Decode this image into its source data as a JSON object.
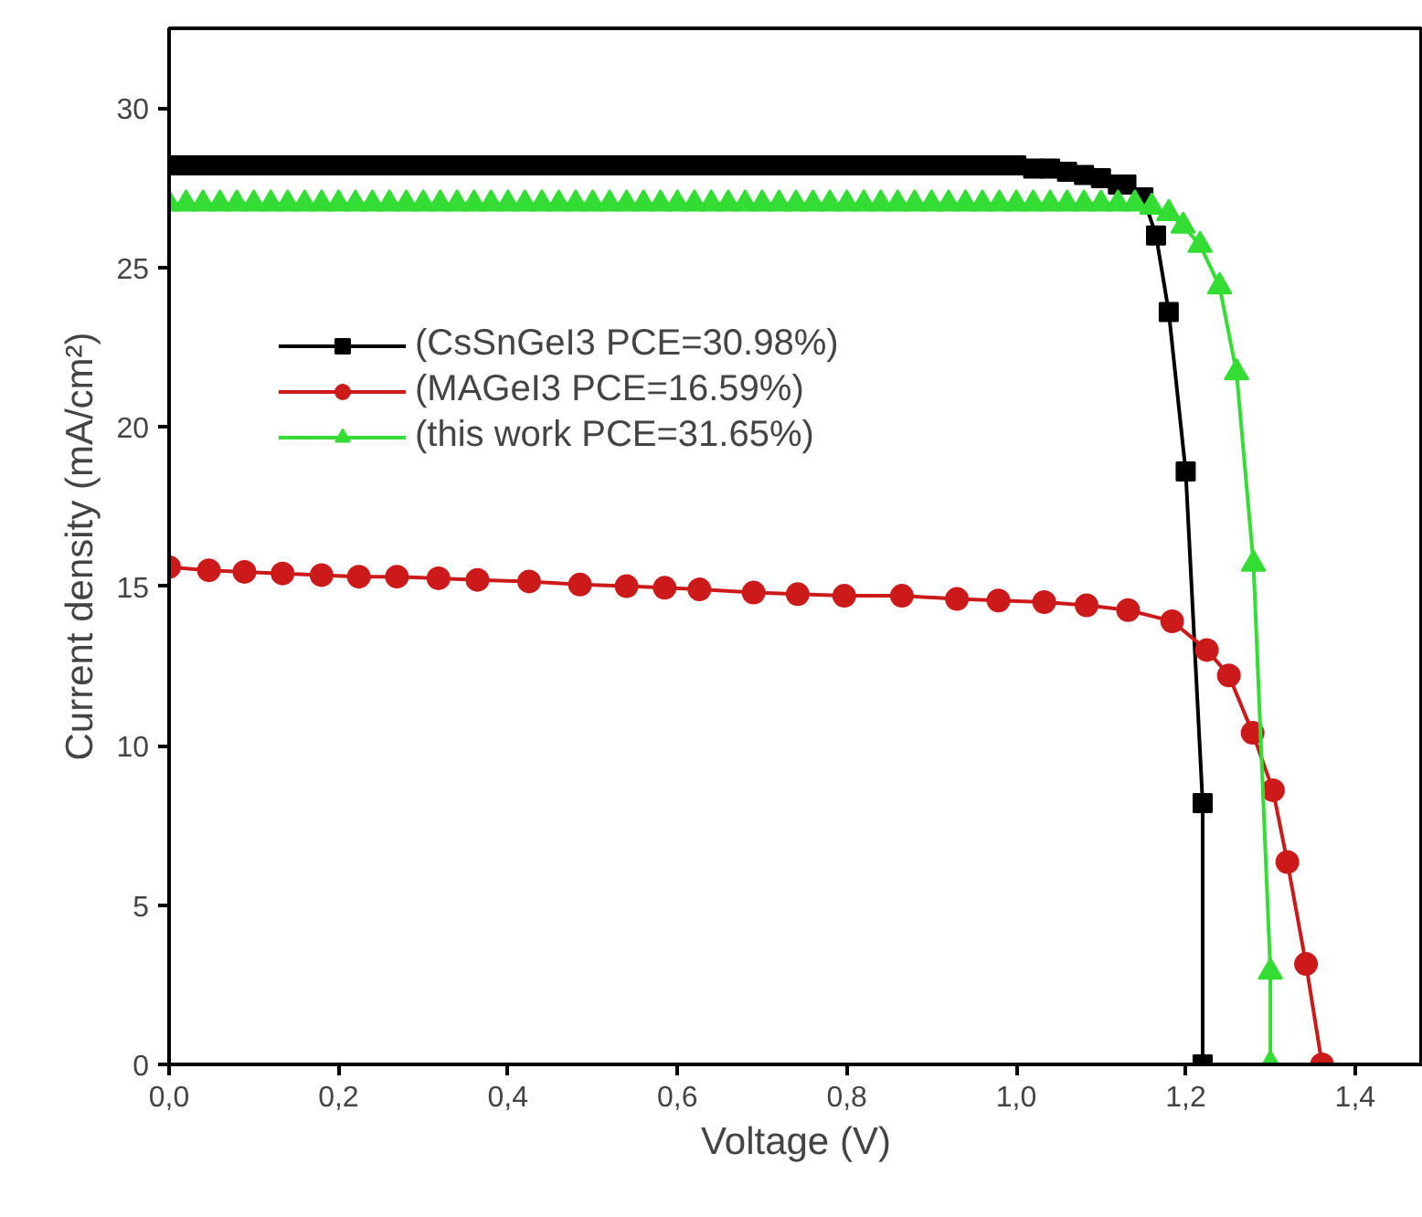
{
  "chart_data": {
    "type": "line",
    "xlabel": "Voltage (V)",
    "ylabel": "Current density (mA/cm²)",
    "xlim": [
      0,
      1.48
    ],
    "ylim": [
      0,
      32.5
    ],
    "xticks": [
      {
        "value": 0,
        "label": "0,0"
      },
      {
        "value": 0.2,
        "label": "0,2"
      },
      {
        "value": 0.4,
        "label": "0,4"
      },
      {
        "value": 0.6,
        "label": "0,6"
      },
      {
        "value": 0.8,
        "label": "0,8"
      },
      {
        "value": 1.0,
        "label": "1,0"
      },
      {
        "value": 1.2,
        "label": "1,2"
      },
      {
        "value": 1.4,
        "label": "1,4"
      }
    ],
    "yticks": [
      0,
      5,
      10,
      15,
      20,
      25,
      30
    ],
    "grid": false,
    "legend": "top left",
    "series": [
      {
        "name": "(CsSnGeI3 PCE=30.98%)",
        "color": "#000000",
        "marker": "square",
        "x": [
          0,
          0.02,
          0.04,
          0.06,
          0.08,
          0.1,
          0.12,
          0.14,
          0.16,
          0.18,
          0.2,
          0.22,
          0.24,
          0.26,
          0.28,
          0.3,
          0.32,
          0.34,
          0.36,
          0.38,
          0.4,
          0.42,
          0.44,
          0.46,
          0.48,
          0.5,
          0.52,
          0.54,
          0.56,
          0.58,
          0.6,
          0.62,
          0.64,
          0.66,
          0.68,
          0.7,
          0.72,
          0.74,
          0.76,
          0.78,
          0.8,
          0.82,
          0.84,
          0.86,
          0.88,
          0.9,
          0.92,
          0.94,
          0.96,
          0.98,
          1.0,
          1.02,
          1.04,
          1.06,
          1.08,
          1.1,
          1.12,
          1.13,
          1.15,
          1.165,
          1.18,
          1.2,
          1.22,
          1.22
        ],
        "values": [
          28.2,
          28.2,
          28.2,
          28.2,
          28.2,
          28.2,
          28.2,
          28.2,
          28.2,
          28.2,
          28.2,
          28.2,
          28.2,
          28.2,
          28.2,
          28.2,
          28.2,
          28.2,
          28.2,
          28.2,
          28.2,
          28.2,
          28.2,
          28.2,
          28.2,
          28.2,
          28.2,
          28.2,
          28.2,
          28.2,
          28.2,
          28.2,
          28.2,
          28.2,
          28.2,
          28.2,
          28.2,
          28.2,
          28.2,
          28.2,
          28.2,
          28.2,
          28.2,
          28.2,
          28.2,
          28.2,
          28.2,
          28.2,
          28.2,
          28.2,
          28.2,
          28.1,
          28.1,
          28.0,
          27.9,
          27.8,
          27.6,
          27.6,
          27.2,
          26.0,
          23.6,
          18.6,
          8.2,
          0
        ]
      },
      {
        "name": "(MAGeI3 PCE=16.59%)",
        "color": "#cc1a1a",
        "marker": "circle",
        "x": [
          0,
          0.047,
          0.089,
          0.134,
          0.18,
          0.224,
          0.269,
          0.318,
          0.364,
          0.425,
          0.485,
          0.54,
          0.585,
          0.626,
          0.69,
          0.742,
          0.797,
          0.865,
          0.93,
          0.979,
          1.033,
          1.083,
          1.132,
          1.184,
          1.225,
          1.251,
          1.279,
          1.303,
          1.32,
          1.342,
          1.361
        ],
        "values": [
          15.6,
          15.5,
          15.45,
          15.4,
          15.35,
          15.3,
          15.3,
          15.25,
          15.2,
          15.15,
          15.05,
          15.0,
          14.95,
          14.9,
          14.8,
          14.75,
          14.7,
          14.7,
          14.6,
          14.55,
          14.5,
          14.4,
          14.25,
          13.9,
          13.0,
          12.2,
          10.4,
          8.6,
          6.35,
          3.15,
          0
        ]
      },
      {
        "name": "(this work PCE=31.65%)",
        "color": "#33dd33",
        "marker": "triangle",
        "x": [
          0,
          0.02,
          0.04,
          0.06,
          0.08,
          0.1,
          0.12,
          0.14,
          0.16,
          0.18,
          0.2,
          0.22,
          0.24,
          0.26,
          0.28,
          0.3,
          0.32,
          0.34,
          0.36,
          0.38,
          0.4,
          0.42,
          0.44,
          0.46,
          0.48,
          0.5,
          0.52,
          0.54,
          0.56,
          0.58,
          0.6,
          0.62,
          0.64,
          0.66,
          0.68,
          0.7,
          0.72,
          0.74,
          0.76,
          0.78,
          0.8,
          0.82,
          0.84,
          0.86,
          0.88,
          0.9,
          0.92,
          0.94,
          0.96,
          0.98,
          1.0,
          1.02,
          1.04,
          1.06,
          1.08,
          1.1,
          1.12,
          1.14,
          1.16,
          1.18,
          1.197,
          1.217,
          1.24,
          1.26,
          1.28,
          1.3,
          1.3
        ],
        "values": [
          27.0,
          27.0,
          27.0,
          27.0,
          27.0,
          27.0,
          27.0,
          27.0,
          27.0,
          27.0,
          27.0,
          27.0,
          27.0,
          27.0,
          27.0,
          27.0,
          27.0,
          27.0,
          27.0,
          27.0,
          27.0,
          27.0,
          27.0,
          27.0,
          27.0,
          27.0,
          27.0,
          27.0,
          27.0,
          27.0,
          27.0,
          27.0,
          27.0,
          27.0,
          27.0,
          27.0,
          27.0,
          27.0,
          27.0,
          27.0,
          27.0,
          27.0,
          27.0,
          27.0,
          27.0,
          27.0,
          27.0,
          27.0,
          27.0,
          27.0,
          27.0,
          27.0,
          27.0,
          27.0,
          27.0,
          27.0,
          27.0,
          27.0,
          26.9,
          26.7,
          26.3,
          25.7,
          24.4,
          21.7,
          15.7,
          2.9,
          0
        ]
      }
    ]
  }
}
